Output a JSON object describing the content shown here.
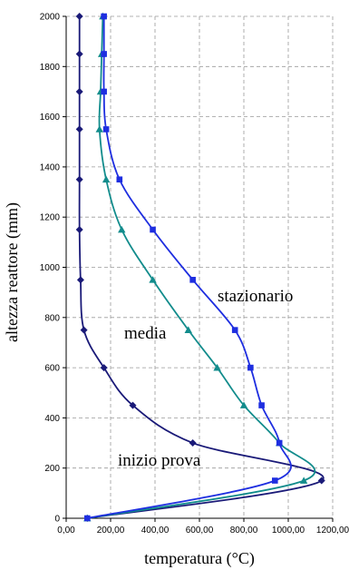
{
  "chart_data": {
    "type": "line",
    "title": "",
    "xlabel": "temperatura (°C)",
    "ylabel": "altezza reattore (mm)",
    "xlim": [
      0,
      1200
    ],
    "ylim": [
      0,
      2000
    ],
    "grid": true,
    "x_ticks": [
      "0,00",
      "200,00",
      "400,00",
      "600,00",
      "800,00",
      "1000,00",
      "1200,00"
    ],
    "y_ticks": [
      "0",
      "200",
      "400",
      "600",
      "800",
      "1000",
      "1200",
      "1400",
      "1600",
      "1800",
      "2000"
    ],
    "series": [
      {
        "name": "inizio prova",
        "color": "#1a1a78",
        "marker": "diamond",
        "points": [
          [
            95,
            0
          ],
          [
            1150,
            150
          ],
          [
            570,
            300
          ],
          [
            300,
            450
          ],
          [
            170,
            600
          ],
          [
            80,
            750
          ],
          [
            65,
            950
          ],
          [
            60,
            1150
          ],
          [
            60,
            1350
          ],
          [
            60,
            1550
          ],
          [
            60,
            1700
          ],
          [
            60,
            1850
          ],
          [
            60,
            2000
          ]
        ]
      },
      {
        "name": "media",
        "color": "#128c8c",
        "marker": "triangle",
        "points": [
          [
            95,
            0
          ],
          [
            1070,
            150
          ],
          [
            960,
            300
          ],
          [
            800,
            450
          ],
          [
            680,
            600
          ],
          [
            550,
            750
          ],
          [
            390,
            950
          ],
          [
            250,
            1150
          ],
          [
            180,
            1350
          ],
          [
            150,
            1550
          ],
          [
            155,
            1700
          ],
          [
            160,
            1850
          ],
          [
            165,
            2000
          ]
        ]
      },
      {
        "name": "stazionario",
        "color": "#1e2ee0",
        "marker": "square",
        "points": [
          [
            95,
            0
          ],
          [
            940,
            150
          ],
          [
            960,
            300
          ],
          [
            880,
            450
          ],
          [
            830,
            600
          ],
          [
            760,
            750
          ],
          [
            570,
            950
          ],
          [
            390,
            1150
          ],
          [
            240,
            1350
          ],
          [
            180,
            1550
          ],
          [
            170,
            1700
          ],
          [
            170,
            1850
          ],
          [
            170,
            2000
          ]
        ]
      }
    ]
  }
}
